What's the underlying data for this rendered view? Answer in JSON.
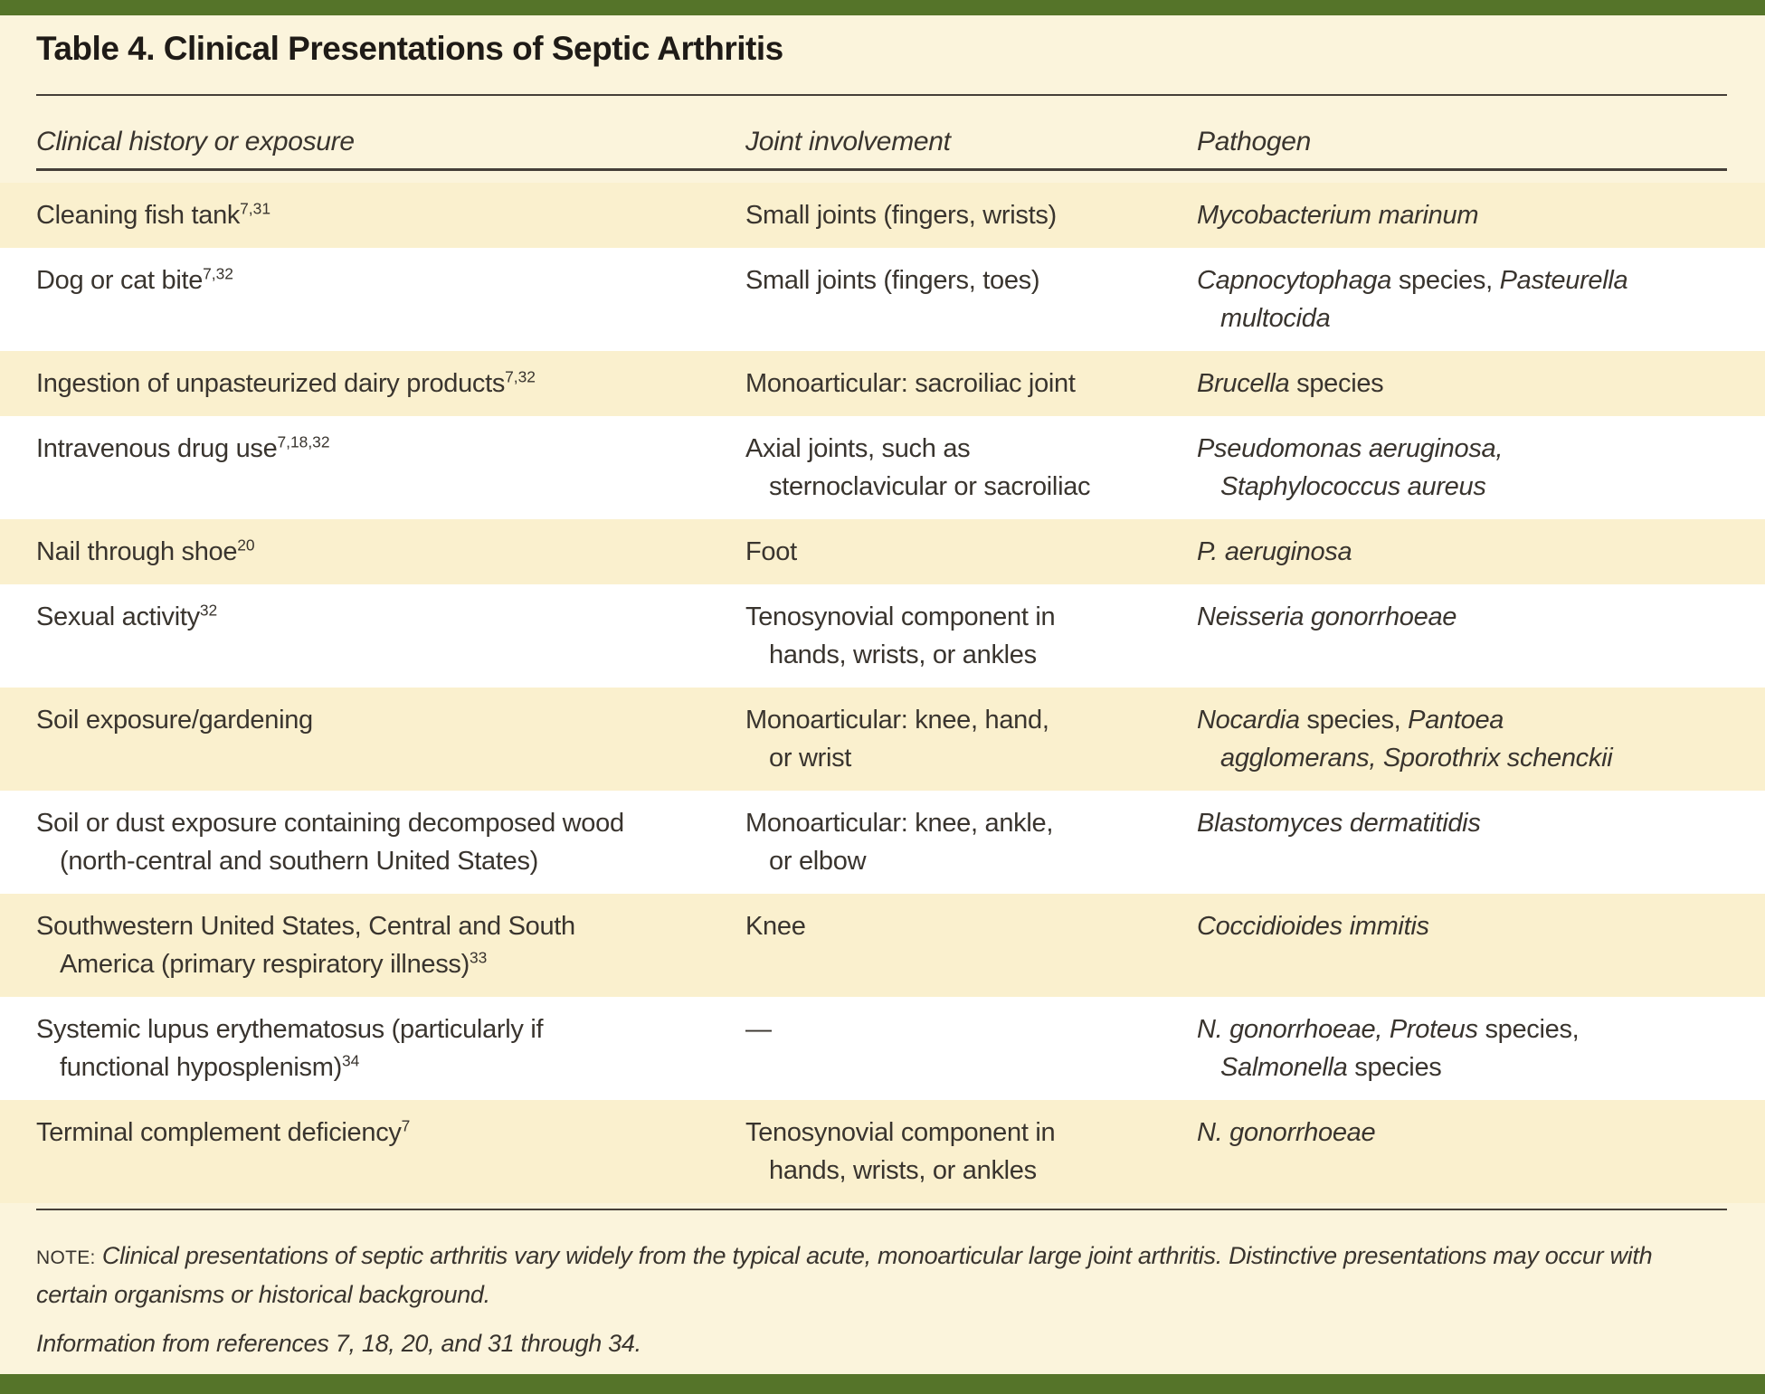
{
  "title": "Table 4. Clinical Presentations of Septic Arthritis",
  "columns": [
    "Clinical history or exposure",
    "Joint involvement",
    "Pathogen"
  ],
  "table": {
    "rows": [
      {
        "shade": "cream",
        "cells": [
          {
            "lines": [
              {
                "ind": false,
                "seg": [
                  {
                    "t": "Cleaning fish tank"
                  },
                  {
                    "t": "7,31",
                    "sup": true
                  }
                ]
              }
            ]
          },
          {
            "lines": [
              {
                "ind": false,
                "seg": [
                  {
                    "t": "Small joints (fingers, wrists)"
                  }
                ]
              }
            ]
          },
          {
            "lines": [
              {
                "ind": false,
                "seg": [
                  {
                    "t": "Mycobacterium marinum",
                    "i": true
                  }
                ]
              }
            ]
          }
        ]
      },
      {
        "shade": "white",
        "cells": [
          {
            "lines": [
              {
                "ind": false,
                "seg": [
                  {
                    "t": "Dog or cat bite"
                  },
                  {
                    "t": "7,32",
                    "sup": true
                  }
                ]
              }
            ]
          },
          {
            "lines": [
              {
                "ind": false,
                "seg": [
                  {
                    "t": "Small joints (fingers, toes)"
                  }
                ]
              }
            ]
          },
          {
            "lines": [
              {
                "ind": false,
                "seg": [
                  {
                    "t": "Capnocytophaga",
                    "i": true
                  },
                  {
                    "t": " species, "
                  },
                  {
                    "t": "Pasteurella",
                    "i": true
                  }
                ]
              },
              {
                "ind": true,
                "seg": [
                  {
                    "t": "multocida",
                    "i": true
                  }
                ]
              }
            ]
          }
        ]
      },
      {
        "shade": "cream",
        "cells": [
          {
            "lines": [
              {
                "ind": false,
                "seg": [
                  {
                    "t": "Ingestion of unpasteurized dairy products"
                  },
                  {
                    "t": "7,32",
                    "sup": true
                  }
                ]
              }
            ]
          },
          {
            "lines": [
              {
                "ind": false,
                "seg": [
                  {
                    "t": "Monoarticular: sacroiliac joint"
                  }
                ]
              }
            ]
          },
          {
            "lines": [
              {
                "ind": false,
                "seg": [
                  {
                    "t": "Brucella",
                    "i": true
                  },
                  {
                    "t": " species"
                  }
                ]
              }
            ]
          }
        ]
      },
      {
        "shade": "white",
        "cells": [
          {
            "lines": [
              {
                "ind": false,
                "seg": [
                  {
                    "t": "Intravenous drug use"
                  },
                  {
                    "t": "7,18,32",
                    "sup": true
                  }
                ]
              }
            ]
          },
          {
            "lines": [
              {
                "ind": false,
                "seg": [
                  {
                    "t": "Axial joints, such as"
                  }
                ]
              },
              {
                "ind": true,
                "seg": [
                  {
                    "t": "sternoclavicular or sacroiliac"
                  }
                ]
              }
            ]
          },
          {
            "lines": [
              {
                "ind": false,
                "seg": [
                  {
                    "t": "Pseudomonas aeruginosa,",
                    "i": true
                  }
                ]
              },
              {
                "ind": true,
                "seg": [
                  {
                    "t": "Staphylococcus aureus",
                    "i": true
                  }
                ]
              }
            ]
          }
        ]
      },
      {
        "shade": "cream",
        "cells": [
          {
            "lines": [
              {
                "ind": false,
                "seg": [
                  {
                    "t": "Nail through shoe"
                  },
                  {
                    "t": "20",
                    "sup": true
                  }
                ]
              }
            ]
          },
          {
            "lines": [
              {
                "ind": false,
                "seg": [
                  {
                    "t": "Foot"
                  }
                ]
              }
            ]
          },
          {
            "lines": [
              {
                "ind": false,
                "seg": [
                  {
                    "t": "P. aeruginosa",
                    "i": true
                  }
                ]
              }
            ]
          }
        ]
      },
      {
        "shade": "white",
        "cells": [
          {
            "lines": [
              {
                "ind": false,
                "seg": [
                  {
                    "t": "Sexual activity"
                  },
                  {
                    "t": "32",
                    "sup": true
                  }
                ]
              }
            ]
          },
          {
            "lines": [
              {
                "ind": false,
                "seg": [
                  {
                    "t": "Tenosynovial component in"
                  }
                ]
              },
              {
                "ind": true,
                "seg": [
                  {
                    "t": "hands, wrists, or ankles"
                  }
                ]
              }
            ]
          },
          {
            "lines": [
              {
                "ind": false,
                "seg": [
                  {
                    "t": "Neisseria gonorrhoeae",
                    "i": true
                  }
                ]
              }
            ]
          }
        ]
      },
      {
        "shade": "cream",
        "cells": [
          {
            "lines": [
              {
                "ind": false,
                "seg": [
                  {
                    "t": "Soil exposure/gardening"
                  }
                ]
              }
            ]
          },
          {
            "lines": [
              {
                "ind": false,
                "seg": [
                  {
                    "t": "Monoarticular: knee, hand,"
                  }
                ]
              },
              {
                "ind": true,
                "seg": [
                  {
                    "t": "or wrist"
                  }
                ]
              }
            ]
          },
          {
            "lines": [
              {
                "ind": false,
                "seg": [
                  {
                    "t": "Nocardia",
                    "i": true
                  },
                  {
                    "t": " species, "
                  },
                  {
                    "t": "Pantoea",
                    "i": true
                  }
                ]
              },
              {
                "ind": true,
                "seg": [
                  {
                    "t": "agglomerans, Sporothrix schenckii",
                    "i": true
                  }
                ]
              }
            ]
          }
        ]
      },
      {
        "shade": "white",
        "cells": [
          {
            "lines": [
              {
                "ind": false,
                "seg": [
                  {
                    "t": "Soil or dust exposure containing decomposed wood"
                  }
                ]
              },
              {
                "ind": true,
                "seg": [
                  {
                    "t": "(north-central and southern United States)"
                  }
                ]
              }
            ]
          },
          {
            "lines": [
              {
                "ind": false,
                "seg": [
                  {
                    "t": "Monoarticular: knee, ankle,"
                  }
                ]
              },
              {
                "ind": true,
                "seg": [
                  {
                    "t": "or elbow"
                  }
                ]
              }
            ]
          },
          {
            "lines": [
              {
                "ind": false,
                "seg": [
                  {
                    "t": "Blastomyces dermatitidis",
                    "i": true
                  }
                ]
              }
            ]
          }
        ]
      },
      {
        "shade": "cream",
        "cells": [
          {
            "lines": [
              {
                "ind": false,
                "seg": [
                  {
                    "t": "Southwestern United States, Central and South"
                  }
                ]
              },
              {
                "ind": true,
                "seg": [
                  {
                    "t": "America (primary respiratory illness)"
                  },
                  {
                    "t": "33",
                    "sup": true
                  }
                ]
              }
            ]
          },
          {
            "lines": [
              {
                "ind": false,
                "seg": [
                  {
                    "t": "Knee"
                  }
                ]
              }
            ]
          },
          {
            "lines": [
              {
                "ind": false,
                "seg": [
                  {
                    "t": "Coccidioides immitis",
                    "i": true
                  }
                ]
              }
            ]
          }
        ]
      },
      {
        "shade": "white",
        "cells": [
          {
            "lines": [
              {
                "ind": false,
                "seg": [
                  {
                    "t": "Systemic lupus erythematosus (particularly if"
                  }
                ]
              },
              {
                "ind": true,
                "seg": [
                  {
                    "t": "functional hyposplenism)"
                  },
                  {
                    "t": "34",
                    "sup": true
                  }
                ]
              }
            ]
          },
          {
            "lines": [
              {
                "ind": false,
                "seg": [
                  {
                    "t": "—"
                  }
                ]
              }
            ]
          },
          {
            "lines": [
              {
                "ind": false,
                "seg": [
                  {
                    "t": "N. gonorrhoeae, Proteus",
                    "i": true
                  },
                  {
                    "t": " species,"
                  }
                ]
              },
              {
                "ind": true,
                "seg": [
                  {
                    "t": "Salmonella",
                    "i": true
                  },
                  {
                    "t": " species"
                  }
                ]
              }
            ]
          }
        ]
      },
      {
        "shade": "cream",
        "cells": [
          {
            "lines": [
              {
                "ind": false,
                "seg": [
                  {
                    "t": "Terminal complement deficiency"
                  },
                  {
                    "t": "7",
                    "sup": true
                  }
                ]
              }
            ]
          },
          {
            "lines": [
              {
                "ind": false,
                "seg": [
                  {
                    "t": "Tenosynovial component in"
                  }
                ]
              },
              {
                "ind": true,
                "seg": [
                  {
                    "t": "hands, wrists, or ankles"
                  }
                ]
              }
            ]
          },
          {
            "lines": [
              {
                "ind": false,
                "seg": [
                  {
                    "t": "N. gonorrhoeae",
                    "i": true
                  }
                ]
              }
            ]
          }
        ]
      }
    ]
  },
  "note": {
    "label": "NOTE:",
    "body": "Clinical presentations of septic arthritis vary widely from the typical acute, monoarticular large joint arthritis. Distinctive presentations may occur with certain organisms or historical background.",
    "source": "Information from references 7, 18, 20, and 31 through 34."
  },
  "colors": {
    "page_bg": "#FBF4DC",
    "row_cream": "#FAF0CE",
    "row_white": "#FFFFFF",
    "bar_green": "#557429",
    "text": "#39342E",
    "rule": "#453F38"
  }
}
